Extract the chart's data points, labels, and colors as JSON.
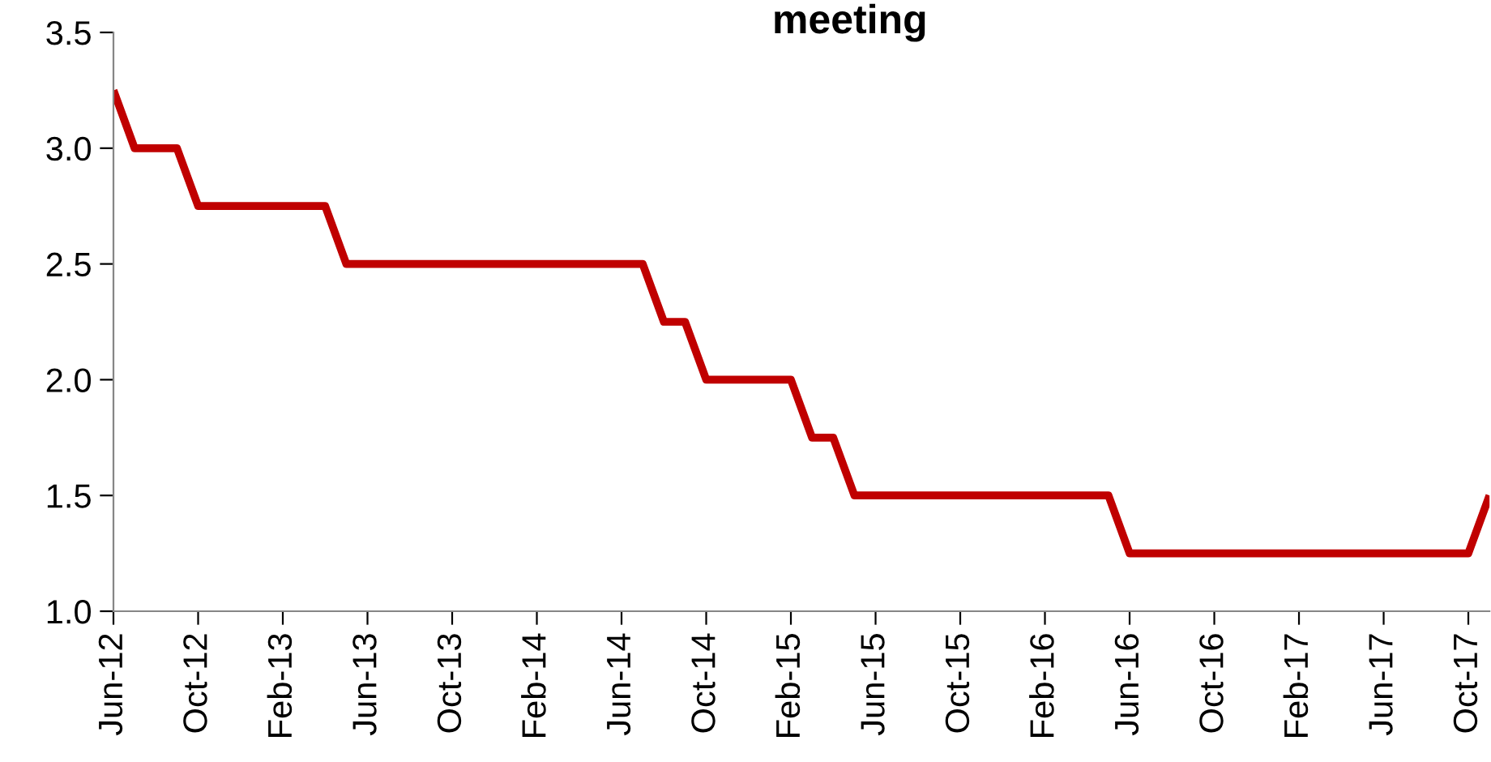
{
  "chart_data": {
    "type": "line",
    "title": "meeting",
    "categories": [
      "Jun-12",
      null,
      null,
      null,
      "Oct-12",
      null,
      null,
      null,
      "Feb-13",
      null,
      null,
      null,
      "Jun-13",
      null,
      null,
      null,
      "Oct-13",
      null,
      null,
      null,
      "Feb-14",
      null,
      null,
      null,
      "Jun-14",
      null,
      null,
      null,
      "Oct-14",
      null,
      null,
      null,
      "Feb-15",
      null,
      null,
      null,
      "Jun-15",
      null,
      null,
      null,
      "Oct-15",
      null,
      null,
      null,
      "Feb-16",
      null,
      null,
      null,
      "Jun-16",
      null,
      null,
      null,
      "Oct-16",
      null,
      null,
      null,
      "Feb-17",
      null,
      null,
      null,
      "Jun-17",
      null,
      null,
      null,
      "Oct-17",
      null
    ],
    "series": [
      {
        "color": "#c00000",
        "values": [
          3.25,
          3.0,
          3.0,
          3.0,
          2.75,
          2.75,
          2.75,
          2.75,
          2.75,
          2.75,
          2.75,
          2.5,
          2.5,
          2.5,
          2.5,
          2.5,
          2.5,
          2.5,
          2.5,
          2.5,
          2.5,
          2.5,
          2.5,
          2.5,
          2.5,
          2.5,
          2.25,
          2.25,
          2.0,
          2.0,
          2.0,
          2.0,
          2.0,
          1.75,
          1.75,
          1.5,
          1.5,
          1.5,
          1.5,
          1.5,
          1.5,
          1.5,
          1.5,
          1.5,
          1.5,
          1.5,
          1.5,
          1.5,
          1.25,
          1.25,
          1.25,
          1.25,
          1.25,
          1.25,
          1.25,
          1.25,
          1.25,
          1.25,
          1.25,
          1.25,
          1.25,
          1.25,
          1.25,
          1.25,
          1.25,
          1.5
        ]
      }
    ],
    "ylim": [
      1.0,
      3.5
    ],
    "yticks": [
      {
        "value": 1.0,
        "label": "1.0"
      },
      {
        "value": 1.5,
        "label": "1.5"
      },
      {
        "value": 2.0,
        "label": "2.0"
      },
      {
        "value": 2.5,
        "label": "2.5"
      },
      {
        "value": 3.0,
        "label": "3.0"
      },
      {
        "value": 3.5,
        "label": "3.5"
      }
    ],
    "grid": false,
    "legend": false,
    "marker": "none",
    "line_style": "solid"
  }
}
